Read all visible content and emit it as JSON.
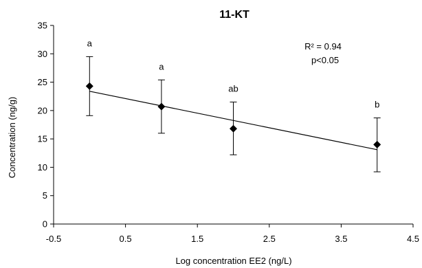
{
  "chart_data": {
    "type": "scatter",
    "title": "11-KT",
    "xlabel": "Log concentration EE2 (ng/L)",
    "ylabel": "Concentration  (ng/g)",
    "xlim": [
      -0.5,
      4.5
    ],
    "ylim": [
      0,
      35
    ],
    "x_ticks": [
      "-0.5",
      "0.5",
      "1.5",
      "2.5",
      "3.5",
      "4.5"
    ],
    "y_ticks": [
      "0",
      "5",
      "10",
      "15",
      "20",
      "25",
      "30",
      "35"
    ],
    "grid": false,
    "points": [
      {
        "x": 0,
        "y": 24.3,
        "err_low": 19.1,
        "err_high": 29.5,
        "label": "a"
      },
      {
        "x": 1,
        "y": 20.7,
        "err_low": 16.0,
        "err_high": 25.4,
        "label": "a"
      },
      {
        "x": 2,
        "y": 16.8,
        "err_low": 12.2,
        "err_high": 21.5,
        "label": "ab"
      },
      {
        "x": 4,
        "y": 14.0,
        "err_low": 9.2,
        "err_high": 18.7,
        "label": "b"
      }
    ],
    "trendline": {
      "x1": 0,
      "y1": 23.4,
      "x2": 4,
      "y2": 13.1
    },
    "annotations": [
      "R² = 0.94",
      "p<0.05"
    ]
  }
}
